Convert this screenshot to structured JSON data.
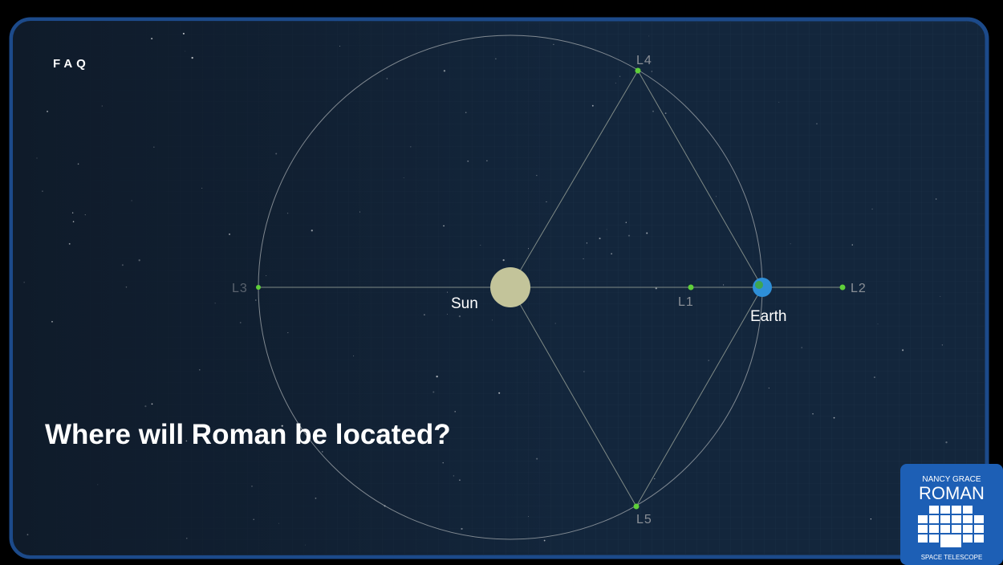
{
  "header": {
    "title": "FAQ"
  },
  "diagram": {
    "nodes": [
      {
        "label": "Sun"
      },
      {
        "label": "Earth"
      },
      {
        "label": "L1"
      },
      {
        "label": "L2"
      },
      {
        "label": "L3"
      },
      {
        "label": "L4"
      },
      {
        "label": "L5"
      }
    ]
  },
  "question": "Where will Roman be located?",
  "logo": {
    "top": "NANCY GRACE",
    "name": "ROMAN",
    "bottom": "SPACE TELESCOPE"
  }
}
